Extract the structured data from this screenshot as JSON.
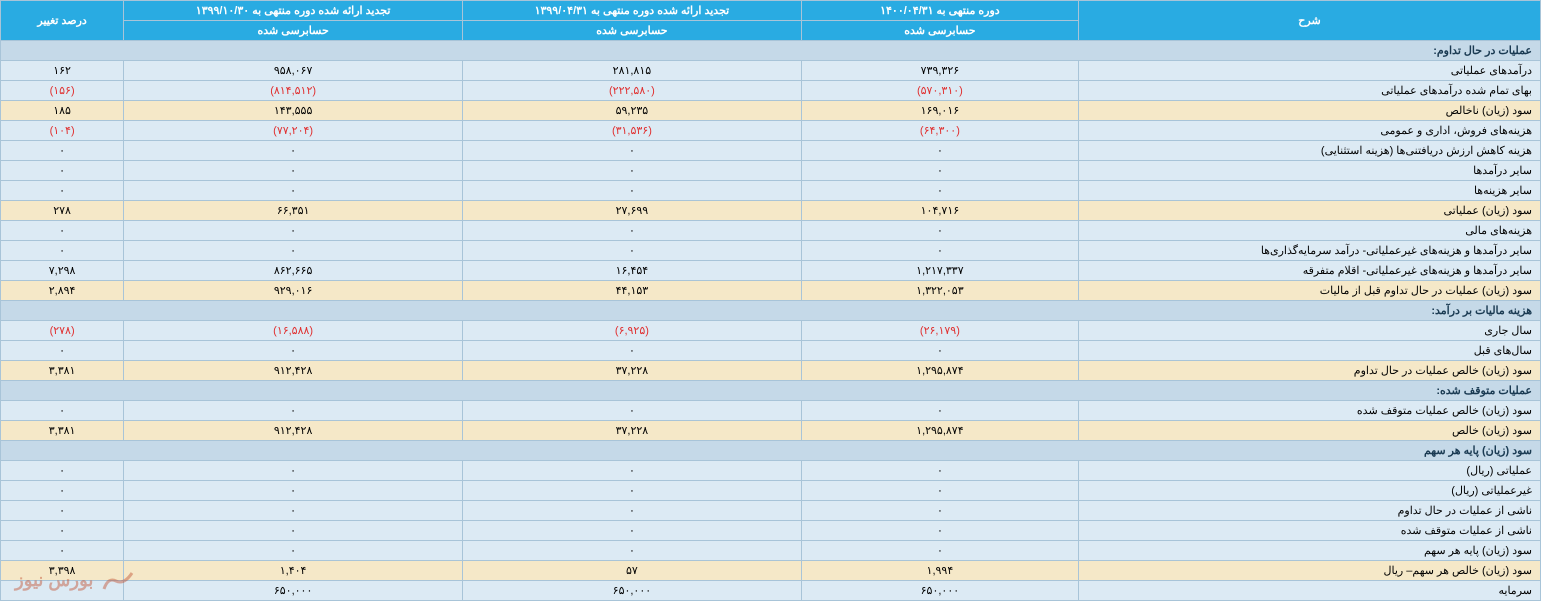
{
  "columns": {
    "c1": "شرح",
    "c2": "دوره منتهی به ۱۴۰۰/۰۴/۳۱",
    "c3": "تجدید ارائه شده دوره منتهی به ۱۳۹۹/۰۴/۳۱",
    "c4": "تجدید ارائه شده دوره منتهی به ۱۳۹۹/۱۰/۳۰",
    "c5": "درصد تغییر",
    "sub": "حسابرسی شده"
  },
  "widths": {
    "c1": "30%",
    "c2": "18%",
    "c3": "22%",
    "c4": "22%",
    "c5": "8%"
  },
  "rows": [
    {
      "type": "section",
      "label": "عملیات در حال تداوم:"
    },
    {
      "type": "blue",
      "label": "درآمدهای عملیاتی",
      "v2": "۷۳۹,۳۲۶",
      "v3": "۲۸۱,۸۱۵",
      "v4": "۹۵۸,۰۶۷",
      "v5": "۱۶۲"
    },
    {
      "type": "blue",
      "label": "بهای تمام شده درآمدهای عملیاتی",
      "v2": "(۵۷۰,۳۱۰)",
      "v3": "(۲۲۲,۵۸۰)",
      "v4": "(۸۱۴,۵۱۲)",
      "v5": "(۱۵۶)",
      "neg": true
    },
    {
      "type": "beige",
      "label": "سود (زیان) ناخالص",
      "v2": "۱۶۹,۰۱۶",
      "v3": "۵۹,۲۳۵",
      "v4": "۱۴۳,۵۵۵",
      "v5": "۱۸۵"
    },
    {
      "type": "blue",
      "label": "هزینه‌های فروش، اداری و عمومی",
      "v2": "(۶۴,۳۰۰)",
      "v3": "(۳۱,۵۳۶)",
      "v4": "(۷۷,۲۰۴)",
      "v5": "(۱۰۴)",
      "neg": true
    },
    {
      "type": "blue",
      "label": "هزینه کاهش ارزش دریافتنی‌ها (هزینه استثنایی)",
      "v2": "۰",
      "v3": "۰",
      "v4": "۰",
      "v5": "۰"
    },
    {
      "type": "blue",
      "label": "سایر درآمدها",
      "v2": "۰",
      "v3": "۰",
      "v4": "۰",
      "v5": "۰"
    },
    {
      "type": "blue",
      "label": "سایر هزینه‌ها",
      "v2": "۰",
      "v3": "۰",
      "v4": "۰",
      "v5": "۰"
    },
    {
      "type": "beige",
      "label": "سود (زیان) عملیاتی",
      "v2": "۱۰۴,۷۱۶",
      "v3": "۲۷,۶۹۹",
      "v4": "۶۶,۳۵۱",
      "v5": "۲۷۸"
    },
    {
      "type": "blue",
      "label": "هزینه‌های مالی",
      "v2": "۰",
      "v3": "۰",
      "v4": "۰",
      "v5": "۰"
    },
    {
      "type": "blue",
      "label": "سایر درآمدها و هزینه‌های غیرعملیاتی- درآمد سرمایه‌گذاری‌ها",
      "v2": "۰",
      "v3": "۰",
      "v4": "۰",
      "v5": "۰"
    },
    {
      "type": "blue",
      "label": "سایر درآمدها و هزینه‌های غیرعملیاتی- اقلام متفرقه",
      "v2": "۱,۲۱۷,۳۳۷",
      "v3": "۱۶,۴۵۴",
      "v4": "۸۶۲,۶۶۵",
      "v5": "۷,۲۹۸"
    },
    {
      "type": "beige",
      "label": "سود (زیان) عملیات در حال تداوم قبل از مالیات",
      "v2": "۱,۳۲۲,۰۵۳",
      "v3": "۴۴,۱۵۳",
      "v4": "۹۲۹,۰۱۶",
      "v5": "۲,۸۹۴"
    },
    {
      "type": "section",
      "label": "هزینه مالیات بر درآمد:"
    },
    {
      "type": "blue",
      "label": "سال جاری",
      "v2": "(۲۶,۱۷۹)",
      "v3": "(۶,۹۲۵)",
      "v4": "(۱۶,۵۸۸)",
      "v5": "(۲۷۸)",
      "neg": true
    },
    {
      "type": "blue",
      "label": "سال‌های قبل",
      "v2": "۰",
      "v3": "۰",
      "v4": "۰",
      "v5": "۰"
    },
    {
      "type": "beige",
      "label": "سود (زیان) خالص عملیات در حال تداوم",
      "v2": "۱,۲۹۵,۸۷۴",
      "v3": "۳۷,۲۲۸",
      "v4": "۹۱۲,۴۲۸",
      "v5": "۳,۳۸۱"
    },
    {
      "type": "section",
      "label": "عملیات متوقف شده:"
    },
    {
      "type": "blue",
      "label": "سود (زیان) خالص عملیات متوقف شده",
      "v2": "۰",
      "v3": "۰",
      "v4": "۰",
      "v5": "۰"
    },
    {
      "type": "beige",
      "label": "سود (زیان) خالص",
      "v2": "۱,۲۹۵,۸۷۴",
      "v3": "۳۷,۲۲۸",
      "v4": "۹۱۲,۴۲۸",
      "v5": "۳,۳۸۱"
    },
    {
      "type": "section",
      "label": "سود (زیان) پایه هر سهم"
    },
    {
      "type": "blue",
      "label": "عملیاتی (ریال)",
      "v2": "۰",
      "v3": "۰",
      "v4": "۰",
      "v5": "۰"
    },
    {
      "type": "blue",
      "label": "غیرعملیاتی (ریال)",
      "v2": "۰",
      "v3": "۰",
      "v4": "۰",
      "v5": "۰"
    },
    {
      "type": "blue",
      "label": "ناشی از عملیات در حال تداوم",
      "v2": "۰",
      "v3": "۰",
      "v4": "۰",
      "v5": "۰"
    },
    {
      "type": "blue",
      "label": "ناشی از عملیات متوقف شده",
      "v2": "۰",
      "v3": "۰",
      "v4": "۰",
      "v5": "۰"
    },
    {
      "type": "blue",
      "label": "سود (زیان) پایه هر سهم",
      "v2": "۰",
      "v3": "۰",
      "v4": "۰",
      "v5": "۰"
    },
    {
      "type": "beige",
      "label": "سود (زیان) خالص هر سهم– ریال",
      "v2": "۱,۹۹۴",
      "v3": "۵۷",
      "v4": "۱,۴۰۴",
      "v5": "۳,۳۹۸"
    },
    {
      "type": "blue",
      "label": "سرمایه",
      "v2": "۶۵۰,۰۰۰",
      "v3": "۶۵۰,۰۰۰",
      "v4": "۶۵۰,۰۰۰",
      "v5": ""
    }
  ],
  "watermark": "بورس نیوز"
}
